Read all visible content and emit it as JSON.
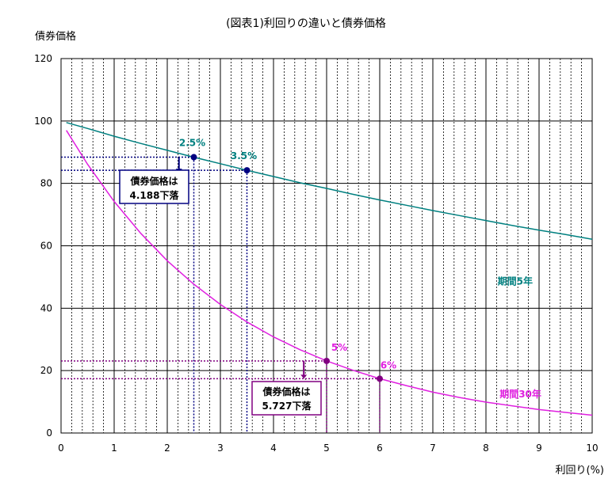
{
  "chart_data": {
    "type": "line",
    "title": "(図表1)利回りの違いと債券価格",
    "ylabel": "債券価格",
    "xlabel": "利回り(%)",
    "xlim": [
      0,
      10
    ],
    "ylim": [
      0,
      120
    ],
    "xticks": [
      0,
      1,
      2,
      3,
      4,
      5,
      6,
      7,
      8,
      9,
      10
    ],
    "yticks": [
      0,
      20,
      40,
      60,
      80,
      100,
      120
    ],
    "grid": true,
    "colors": {
      "s5": "#008080",
      "s30": "#e020e0",
      "blue": "#000080",
      "purple": "#800080",
      "plot_bg": "#ffffff"
    },
    "series": [
      {
        "name": "期間5年",
        "x": [
          0.1,
          0.5,
          1,
          1.5,
          2,
          2.5,
          3,
          3.5,
          4,
          4.5,
          5,
          5.5,
          6,
          6.5,
          7,
          7.5,
          8,
          8.5,
          9,
          9.5,
          10
        ],
        "values": [
          99.5,
          97.6,
          95.1,
          92.8,
          90.6,
          88.4,
          86.3,
          84.2,
          82.2,
          80.2,
          78.4,
          76.5,
          74.7,
          73.0,
          71.3,
          69.7,
          68.1,
          66.5,
          65.0,
          63.6,
          62.1
        ]
      },
      {
        "name": "期間30年",
        "x": [
          0.1,
          0.5,
          1,
          1.5,
          2,
          2.5,
          3,
          3.5,
          4,
          4.5,
          5,
          5.5,
          6,
          6.5,
          7,
          7.5,
          8,
          8.5,
          9,
          9.5,
          10
        ],
        "values": [
          97.0,
          86.1,
          74.2,
          64.0,
          55.2,
          47.7,
          41.2,
          35.6,
          30.8,
          26.7,
          23.1,
          20.1,
          17.4,
          15.2,
          13.1,
          11.4,
          9.9,
          8.7,
          7.5,
          6.6,
          5.7
        ]
      }
    ],
    "points": [
      {
        "label": "2.5%",
        "x": 2.5,
        "y": 88.4
      },
      {
        "label": "3.5%",
        "x": 3.5,
        "y": 84.2
      },
      {
        "label": "5%",
        "x": 5,
        "y": 23.1
      },
      {
        "label": "6%",
        "x": 6,
        "y": 17.4
      }
    ],
    "annotations": {
      "box5_line1": "債券価格は",
      "box5_line2": "4.188下落",
      "box30_line1": "債券価格は",
      "box30_line2": "5.727下落"
    }
  }
}
